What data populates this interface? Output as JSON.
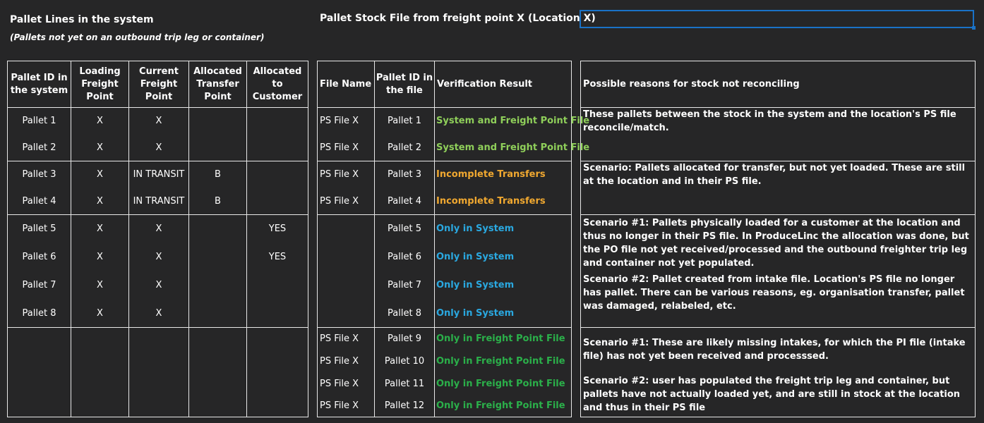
{
  "left_title": "Pallet Lines in the system",
  "left_subtitle": "(Pallets not yet on an outbound trip leg or container)",
  "mid_title": "Pallet Stock File from freight point X (Location X)",
  "system_table": {
    "headers": [
      "Pallet ID in the system",
      "Loading Freight Point",
      "Current Freight Point",
      "Allocated Transfer Point",
      "Allocated to Customer"
    ],
    "rows": [
      [
        "Pallet 1",
        "X",
        "X",
        "",
        ""
      ],
      [
        "Pallet 2",
        "X",
        "X",
        "",
        ""
      ],
      [
        "Pallet 3",
        "X",
        "IN TRANSIT",
        "B",
        ""
      ],
      [
        "Pallet 4",
        "X",
        "IN TRANSIT",
        "B",
        ""
      ],
      [
        "Pallet 5",
        "X",
        "X",
        "",
        "YES"
      ],
      [
        "Pallet 6",
        "X",
        "X",
        "",
        "YES"
      ],
      [
        "Pallet 7",
        "X",
        "X",
        "",
        ""
      ],
      [
        "Pallet 8",
        "X",
        "X",
        "",
        ""
      ]
    ]
  },
  "file_table": {
    "headers": [
      "File Name",
      "Pallet ID in the file",
      "Verification Result"
    ],
    "rows": [
      [
        "PS File X",
        "Pallet 1",
        "System and Freight Point File"
      ],
      [
        "PS File X",
        "Pallet 2",
        "System and Freight Point File"
      ],
      [
        "PS File X",
        "Pallet 3",
        "Incomplete Transfers"
      ],
      [
        "PS File X",
        "Pallet 4",
        "Incomplete Transfers"
      ],
      [
        "",
        "Pallet 5",
        "Only in System"
      ],
      [
        "",
        "Pallet 6",
        "Only in System"
      ],
      [
        "",
        "Pallet 7",
        "Only in System"
      ],
      [
        "",
        "Pallet 8",
        "Only in System"
      ],
      [
        "PS File X",
        "Pallet 9",
        "Only in Freight Point File"
      ],
      [
        "PS File X",
        "Pallet 10",
        "Only in Freight Point File"
      ],
      [
        "PS File X",
        "Pallet 11",
        "Only in Freight Point File"
      ],
      [
        "PS File X",
        "Pallet 12",
        "Only in Freight Point File"
      ]
    ]
  },
  "reasons": {
    "header": "Possible reasons for stock not reconciling",
    "g1": "These pallets between the stock in the system and the location's PS file reconcile/match.",
    "g2": "Scenario: Pallets allocated for transfer, but not yet loaded. These are still at the location and in their PS file.",
    "g3a": "Scenario #1: Pallets physically loaded for a customer at the location and thus no longer in their PS file. In ProduceLinc the allocation was done, but the PO file not yet received/processed and the outbound freighter trip leg and container not yet populated.",
    "g3b": "Scenario #2: Pallet created from intake file. Location's PS file no longer has pallet. There can be various reasons, eg. organisation transfer, pallet was damaged, relabeled, etc.",
    "g4a": "Scenario #1: These are likely missing intakes, for which the PI file (intake file) has not yet been received and processsed.",
    "g4b": "Scenario #2: user has populated the freight trip leg and container, but pallets have not actually loaded yet, and are still in stock at the location and thus in their PS file"
  },
  "colors": {
    "background": "#262627",
    "reconciled": "#8fcf5a",
    "incomplete": "#f0a830",
    "only_system": "#2aa8e0",
    "only_file": "#2bb04a"
  }
}
